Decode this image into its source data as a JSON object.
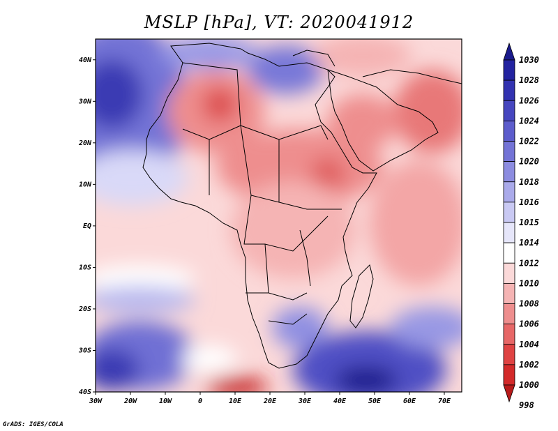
{
  "title": "MSLP [hPa], VT: 2020041912",
  "credit": "GrADS: IGES/COLA",
  "map": {
    "lon_ticks": [
      "30W",
      "20W",
      "10W",
      "0",
      "10E",
      "20E",
      "30E",
      "40E",
      "50E",
      "60E",
      "70E"
    ],
    "lat_ticks": [
      "40N",
      "30N",
      "20N",
      "10N",
      "EQ",
      "10S",
      "20S",
      "30S",
      "40S"
    ]
  },
  "colorbar": {
    "levels": [
      "1030",
      "1028",
      "1026",
      "1024",
      "1022",
      "1020",
      "1018",
      "1016",
      "1015",
      "1014",
      "1012",
      "1010",
      "1008",
      "1006",
      "1004",
      "1002",
      "1000",
      "998"
    ],
    "colors": [
      "#1a1a8c",
      "#2323a0",
      "#3232b0",
      "#4646bf",
      "#5c5ccc",
      "#7373d6",
      "#8c8ce0",
      "#aaaaea",
      "#c9c9f3",
      "#e6e6fa",
      "#ffffff",
      "#fbd9d9",
      "#f5b4b4",
      "#ee8e8e",
      "#e76767",
      "#df4343",
      "#d32a2a",
      "#b81a1a"
    ]
  }
}
